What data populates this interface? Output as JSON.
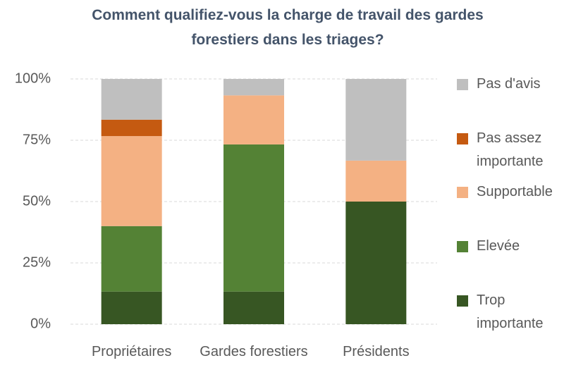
{
  "chart_data": {
    "type": "stacked_bar",
    "title": "Comment qualifiez-vous la charge de travail des gardes forestiers dans les triages?",
    "categories": [
      "Propriétaires",
      "Gardes forestiers",
      "Présidents"
    ],
    "series": [
      {
        "name": "Trop importante",
        "color": "#375623",
        "values": [
          13.3,
          13.3,
          50
        ]
      },
      {
        "name": "Elevée",
        "color": "#548235",
        "values": [
          26.7,
          60,
          0
        ]
      },
      {
        "name": "Supportable",
        "color": "#f4b183",
        "values": [
          36.7,
          20,
          16.7
        ]
      },
      {
        "name": "Pas assez importante",
        "color": "#c55a11",
        "values": [
          6.7,
          0,
          0
        ]
      },
      {
        "name": "Pas d'avis",
        "color": "#bfbfbf",
        "values": [
          16.6,
          6.7,
          33.3
        ]
      }
    ],
    "ylim": [
      0,
      100
    ],
    "yticks": [
      {
        "value": 0,
        "label": "0%"
      },
      {
        "value": 25,
        "label": "25%"
      },
      {
        "value": 50,
        "label": "50%"
      },
      {
        "value": 75,
        "label": "75%"
      },
      {
        "value": 100,
        "label": "100%"
      }
    ],
    "grid": true,
    "legend": "right"
  }
}
